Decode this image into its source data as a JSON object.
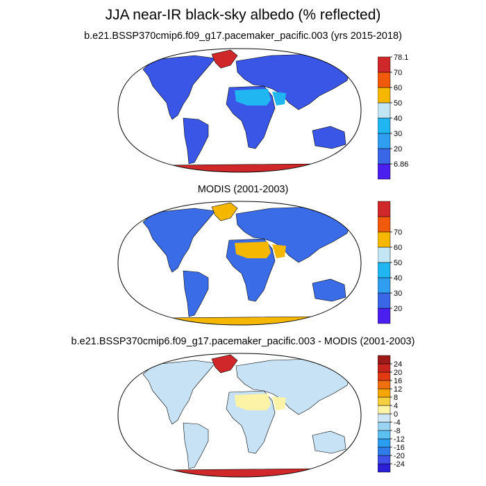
{
  "title": "JJA near-IR black-sky albedo (% reflected)",
  "panels": [
    {
      "name": "model",
      "subtitle": "b.e21.BSSP370cmip6.f09_g17.pacemaker_pacific.003 (yrs 2015-2018)",
      "colorbar": {
        "colors": [
          "#4b1ff0",
          "#3a66e8",
          "#2f9df0",
          "#1fb6f2",
          "#c3e6f4",
          "#f5b700",
          "#f05a0a",
          "#d0282a"
        ],
        "labels": [
          "6.86",
          "20",
          "30",
          "40",
          "50",
          "60",
          "70",
          "78.1"
        ]
      },
      "colors": {
        "ocean": "#ffffff",
        "land": "#3a56e6",
        "desert": "#1fb6f2",
        "ice": "#d0282a"
      }
    },
    {
      "name": "modis",
      "subtitle": "MODIS (2001-2003)",
      "colorbar": {
        "colors": [
          "#4b1ff0",
          "#3a66e8",
          "#2f9df0",
          "#1fb6f2",
          "#c3e6f4",
          "#f5b700",
          "#f05a0a",
          "#d0282a"
        ],
        "labels": [
          "20",
          "30",
          "40",
          "50",
          "60",
          "70"
        ]
      },
      "colors": {
        "ocean": "#ffffff",
        "land": "#3a6ce8",
        "desert": "#f5b700",
        "ice": "#f5b700"
      }
    },
    {
      "name": "difference",
      "subtitle": "b.e21.BSSP370cmip6.f09_g17.pacemaker_pacific.003 - MODIS (2001-2003)",
      "colorbar": {
        "colors": [
          "#2a1fd6",
          "#3f50e8",
          "#2f7ce8",
          "#2a9df0",
          "#5cc0f0",
          "#9ad4f2",
          "#cfe6f4",
          "#fdf3a6",
          "#f5cf40",
          "#f5a500",
          "#f07010",
          "#e23a12",
          "#c8241e",
          "#9e1a1a"
        ],
        "labels": [
          "-24",
          "-20",
          "-16",
          "-12",
          "-8",
          "-4",
          "0",
          "4",
          "8",
          "12",
          "16",
          "20",
          "24"
        ]
      },
      "colors": {
        "ocean": "#ffffff",
        "land": "#c6e2f4",
        "desert": "#fdf3a6",
        "ice": "#d0282a"
      }
    }
  ]
}
